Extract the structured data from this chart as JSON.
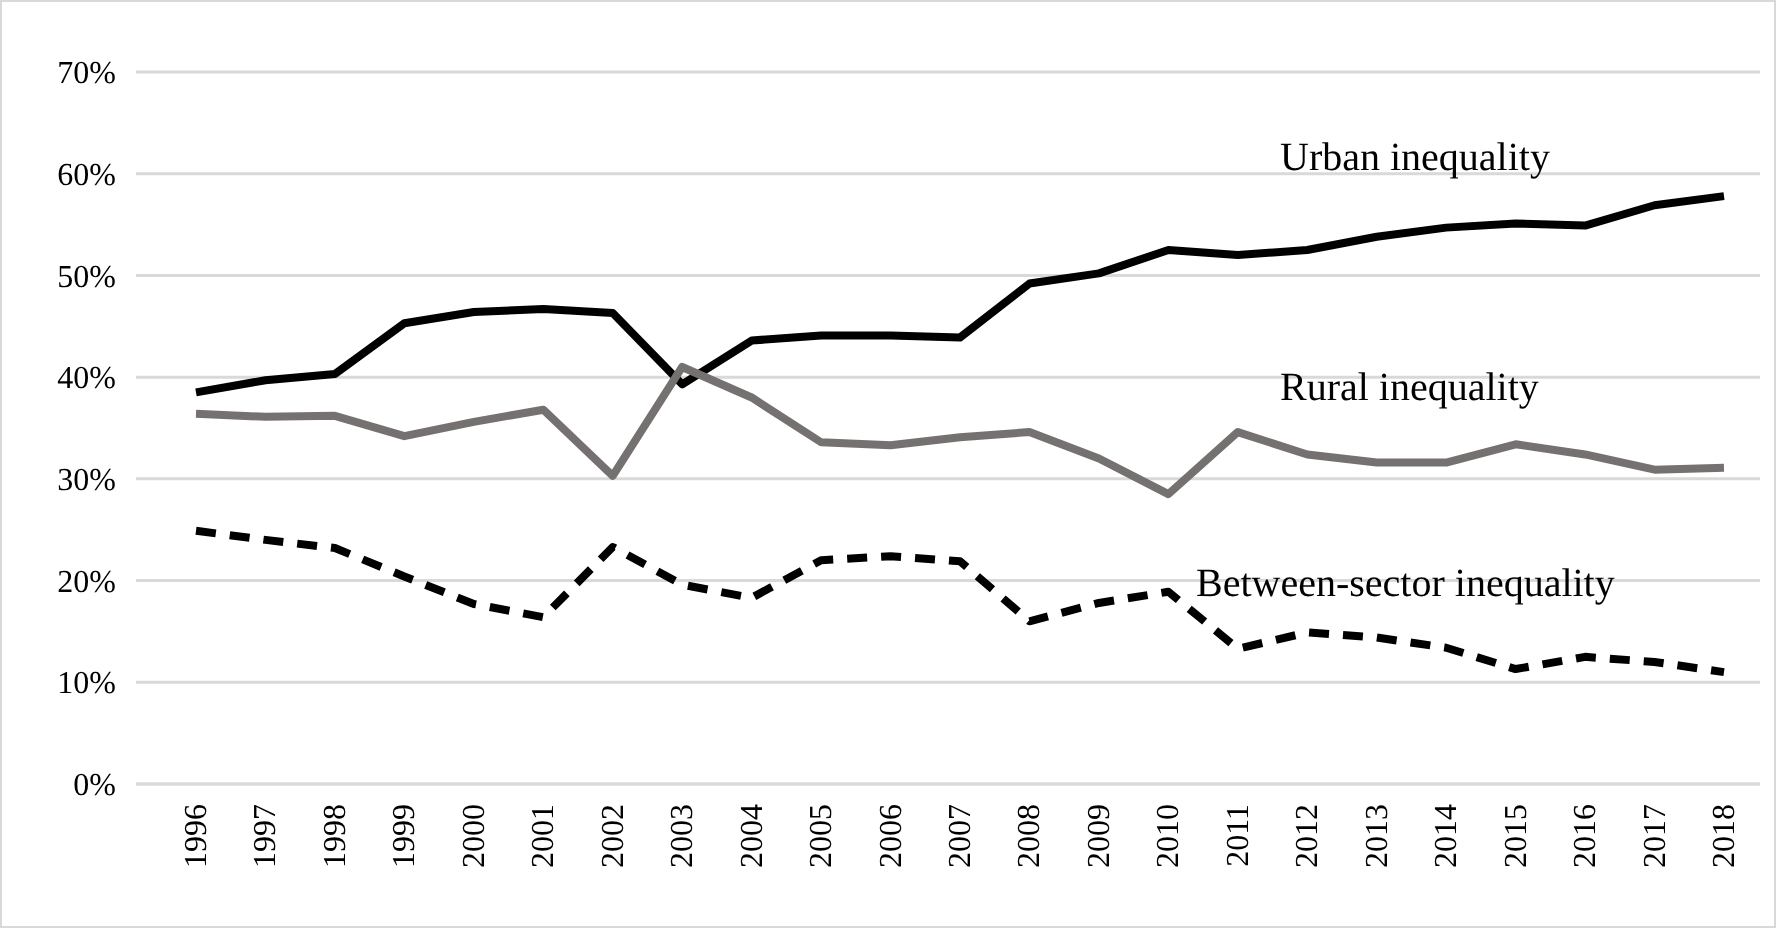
{
  "chart_data": {
    "type": "line",
    "categories": [
      "1996",
      "1997",
      "1998",
      "1999",
      "2000",
      "2001",
      "2002",
      "2003",
      "2004",
      "2005",
      "2006",
      "2007",
      "2008",
      "2009",
      "2010",
      "2011",
      "2012",
      "2013",
      "2014",
      "2015",
      "2016",
      "2017",
      "2018"
    ],
    "ylim": [
      0,
      70
    ],
    "yticks": [
      {
        "value": 0,
        "label": "0%"
      },
      {
        "value": 10,
        "label": "10%"
      },
      {
        "value": 20,
        "label": "20%"
      },
      {
        "value": 30,
        "label": "30%"
      },
      {
        "value": 40,
        "label": "40%"
      },
      {
        "value": 50,
        "label": "50%"
      },
      {
        "value": 60,
        "label": "60%"
      },
      {
        "value": 70,
        "label": "70%"
      }
    ],
    "grid": "y",
    "legend": false,
    "marker": "none",
    "series": [
      {
        "name": "Urban inequality",
        "color": "#000000",
        "line_style": "solid",
        "values": [
          38.5,
          39.7,
          40.3,
          45.3,
          46.4,
          46.7,
          46.3,
          39.3,
          43.6,
          44.1,
          44.1,
          43.9,
          49.2,
          50.2,
          52.5,
          52.0,
          52.5,
          53.8,
          54.7,
          55.1,
          54.9,
          56.9,
          57.8
        ]
      },
      {
        "name": "Rural inequality",
        "color": "#767171",
        "line_style": "solid",
        "values": [
          36.4,
          36.1,
          36.2,
          34.2,
          35.6,
          36.8,
          30.3,
          41.0,
          38.0,
          33.6,
          33.3,
          34.1,
          34.6,
          32.0,
          28.5,
          34.6,
          32.4,
          31.6,
          31.6,
          33.4,
          32.4,
          30.9,
          31.1
        ]
      },
      {
        "name": "Between-sector inequality",
        "color": "#000000",
        "line_style": "dashed",
        "values": [
          24.9,
          24.0,
          23.2,
          20.4,
          17.7,
          16.4,
          23.3,
          19.6,
          18.3,
          22.0,
          22.4,
          21.9,
          16.0,
          17.8,
          18.9,
          13.3,
          14.9,
          14.4,
          13.4,
          11.3,
          12.5,
          12.0,
          11.0
        ]
      }
    ]
  }
}
